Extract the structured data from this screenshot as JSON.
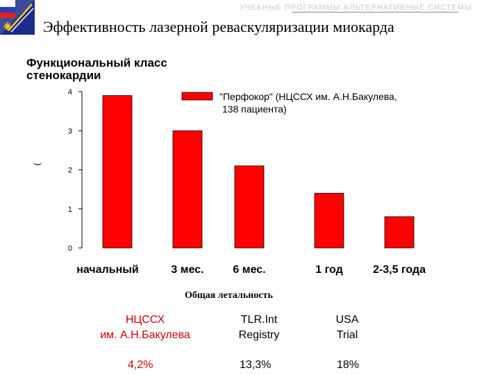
{
  "header": {
    "faded_text": "УЧЕБНЫЕ ПРОГРАММЫ АЛЬТЕРНАТИВНЫЕ СИСТЕМЫ",
    "title": "Эффективность лазерной реваскуляризации миокарда"
  },
  "chart_data": {
    "type": "bar",
    "title": "Функциональный класс стенокардии",
    "title_lines": [
      "Функциональный класс",
      "стенокардии"
    ],
    "ylabel": "(",
    "categories": [
      "начальный",
      "3 мес.",
      "6 мес.",
      "1 год",
      "2-3,5 года"
    ],
    "series": [
      {
        "name": "\"Перфокор\" (НЦССХ им. А.Н.Бакулева, 138 пациента)",
        "name_lines": [
          "\"Перфокор\" (НЦССХ им. А.Н.Бакулева,",
          "138 пациента)"
        ],
        "values": [
          3.9,
          3.0,
          2.1,
          1.4,
          0.8
        ],
        "color": "#ff0000"
      }
    ],
    "ylim": [
      0,
      4
    ],
    "yticks": [
      "0",
      "1",
      "2",
      "3",
      "4"
    ],
    "legend": "top-right",
    "grid": false
  },
  "mortality": {
    "title": "Общая летальность",
    "columns": [
      {
        "name_line1": "НЦССХ",
        "name_line2": "им. А.Н.Бакулева",
        "value": "4,2%",
        "color": "#cc0000"
      },
      {
        "name_line1": "TLR.Int",
        "name_line2": "Registry",
        "value": "13,3%",
        "color": "#000000"
      },
      {
        "name_line1": "USA",
        "name_line2": "Trial",
        "value": "18%",
        "color": "#000000"
      }
    ]
  }
}
